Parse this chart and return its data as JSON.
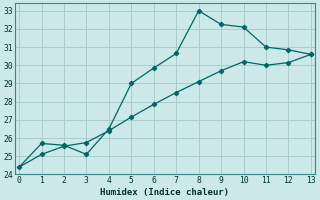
{
  "xlabel": "Humidex (Indice chaleur)",
  "background_color": "#cce8e8",
  "grid_color": "#aacccc",
  "line_color": "#006666",
  "xlim": [
    -0.2,
    13.2
  ],
  "ylim": [
    24,
    33.4
  ],
  "xticks": [
    0,
    1,
    2,
    3,
    4,
    5,
    6,
    7,
    8,
    9,
    10,
    11,
    12,
    13
  ],
  "yticks": [
    24,
    25,
    26,
    27,
    28,
    29,
    30,
    31,
    32,
    33
  ],
  "line1_x": [
    0,
    1,
    2,
    3,
    4,
    5,
    6,
    7,
    8,
    9,
    10,
    11,
    12,
    13
  ],
  "line1_y": [
    24.4,
    25.7,
    25.6,
    25.1,
    26.5,
    29.0,
    29.85,
    30.65,
    33.0,
    32.25,
    32.1,
    31.0,
    30.85,
    30.6
  ],
  "line2_x": [
    0,
    1,
    2,
    3,
    4,
    5,
    6,
    7,
    8,
    9,
    10,
    11,
    12,
    13
  ],
  "line2_y": [
    24.4,
    25.1,
    25.55,
    25.75,
    26.4,
    27.15,
    27.85,
    28.5,
    29.1,
    29.7,
    30.2,
    30.0,
    30.15,
    30.6
  ],
  "line1_markers": [
    0,
    1,
    2,
    3,
    4,
    5,
    6,
    7,
    8,
    9,
    10,
    11,
    12,
    13
  ],
  "line2_markers": [
    1,
    2,
    3,
    4,
    5,
    6,
    7,
    8,
    9,
    10,
    11,
    12,
    13
  ]
}
